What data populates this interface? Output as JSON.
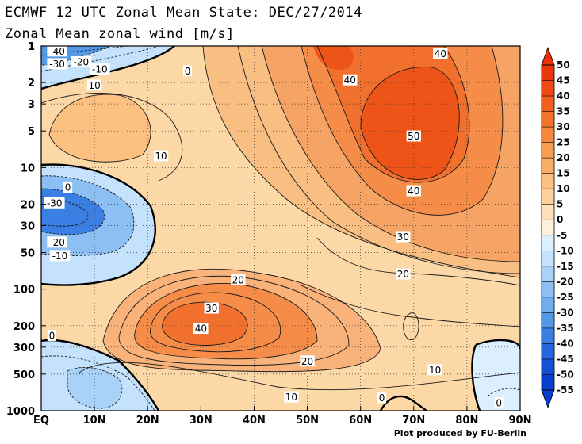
{
  "title": "ECMWF 12 UTC Zonal Mean State: DEC/27/2014",
  "subtitle": "Zonal Mean zonal wind [m/s]",
  "credit": "Plot produced by FU-Berlin",
  "chart_data": {
    "type": "heatmap",
    "title": "ECMWF 12 UTC Zonal Mean State: DEC/27/2014",
    "subtitle": "Zonal Mean zonal wind [m/s]",
    "xlabel": "",
    "ylabel": "",
    "x_ticks": [
      "EQ",
      "10N",
      "20N",
      "30N",
      "40N",
      "50N",
      "60N",
      "70N",
      "80N",
      "90N"
    ],
    "x_tick_values": [
      0,
      10,
      20,
      30,
      40,
      50,
      60,
      70,
      80,
      90
    ],
    "y_ticks": [
      "1",
      "2",
      "3",
      "5",
      "10",
      "20",
      "30",
      "50",
      "100",
      "200",
      "300",
      "500",
      "1000"
    ],
    "y_tick_values": [
      1,
      2,
      3,
      5,
      10,
      20,
      30,
      50,
      100,
      200,
      300,
      500,
      1000
    ],
    "y_scale": "log",
    "y_inverted": true,
    "xlim": [
      0,
      90
    ],
    "ylim": [
      1000,
      1
    ],
    "colorbar": {
      "levels": [
        50,
        45,
        40,
        35,
        30,
        25,
        20,
        15,
        10,
        5,
        0,
        -5,
        -10,
        -15,
        -20,
        -25,
        -30,
        -35,
        -40,
        -45,
        -50,
        -55
      ],
      "labels": [
        "50",
        "45",
        "40",
        "35",
        "30",
        "25",
        "20",
        "15",
        "10",
        "5",
        "0",
        "-5",
        "-10",
        "-15",
        "-20",
        "-25",
        "-30",
        "-35",
        "-40",
        "-45",
        "-50",
        "-55"
      ],
      "colors": [
        "#e8380c",
        "#ee4c14",
        "#f2601e",
        "#f4742c",
        "#f6883c",
        "#f89c50",
        "#faae66",
        "#fcc080",
        "#fdd09c",
        "#fee0ba",
        "#fef0da",
        "#dcefff",
        "#c4e2fc",
        "#a8d2f8",
        "#8cc0f4",
        "#70aef0",
        "#5498ea",
        "#3a80e4",
        "#2466dc",
        "#1450d4",
        "#0a3ecc"
      ]
    },
    "contour_labels": [
      {
        "text": "-40",
        "lat": 3,
        "p": 1.1
      },
      {
        "text": "-30",
        "lat": 3,
        "p": 1.4
      },
      {
        "text": "-20",
        "lat": 7.5,
        "p": 1.35
      },
      {
        "text": "-10",
        "lat": 11,
        "p": 1.55
      },
      {
        "text": "0",
        "lat": 27.5,
        "p": 1.6
      },
      {
        "text": "10",
        "lat": 10,
        "p": 2.1
      },
      {
        "text": "40",
        "lat": 75,
        "p": 1.15
      },
      {
        "text": "40",
        "lat": 58,
        "p": 1.9
      },
      {
        "text": "50",
        "lat": 70,
        "p": 5.5
      },
      {
        "text": "10",
        "lat": 22.5,
        "p": 8.0
      },
      {
        "text": "0",
        "lat": 5,
        "p": 14.5
      },
      {
        "text": "-30",
        "lat": 2.5,
        "p": 19.5
      },
      {
        "text": "40",
        "lat": 70,
        "p": 15.5
      },
      {
        "text": "30",
        "lat": 68,
        "p": 37
      },
      {
        "text": "-20",
        "lat": 3,
        "p": 41
      },
      {
        "text": "-10",
        "lat": 3.5,
        "p": 53
      },
      {
        "text": "20",
        "lat": 37,
        "p": 84
      },
      {
        "text": "20",
        "lat": 68,
        "p": 75
      },
      {
        "text": "30",
        "lat": 32,
        "p": 143
      },
      {
        "text": "40",
        "lat": 30,
        "p": 210
      },
      {
        "text": "0",
        "lat": 2,
        "p": 240
      },
      {
        "text": "20",
        "lat": 50,
        "p": 390
      },
      {
        "text": "10",
        "lat": 74,
        "p": 460
      },
      {
        "text": "10",
        "lat": 47,
        "p": 770
      },
      {
        "text": "0",
        "lat": 64,
        "p": 780
      },
      {
        "text": "0",
        "lat": 86,
        "p": 860
      }
    ]
  }
}
